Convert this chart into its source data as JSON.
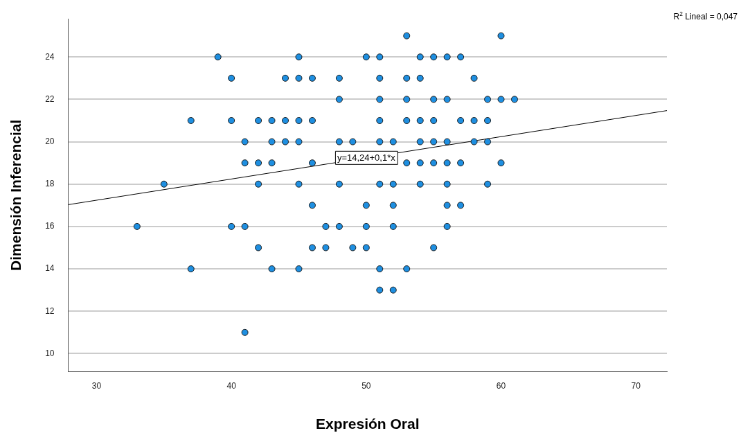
{
  "chart_data": {
    "type": "scatter",
    "xlabel": "Expresión Oral",
    "ylabel": "Dimensión Inferencial",
    "xlim": [
      27.9,
      72.3
    ],
    "ylim": [
      9.15,
      25.8
    ],
    "xticks": [
      30,
      40,
      50,
      60,
      70
    ],
    "yticks": [
      10,
      12,
      14,
      16,
      18,
      20,
      22,
      24
    ],
    "grid": "y",
    "legend": false,
    "series": [
      {
        "marker": "circle",
        "color": "#1e8fe1",
        "x": [
          53,
          60,
          39,
          45,
          50,
          51,
          54,
          55,
          56,
          57,
          40,
          44,
          45,
          46,
          48,
          51,
          53,
          54,
          58,
          48,
          51,
          53,
          55,
          56,
          59,
          60,
          61,
          37,
          40,
          42,
          43,
          44,
          45,
          46,
          51,
          53,
          54,
          55,
          57,
          58,
          59,
          41,
          43,
          44,
          45,
          48,
          49,
          51,
          52,
          54,
          55,
          56,
          58,
          59,
          41,
          42,
          43,
          46,
          53,
          54,
          55,
          56,
          57,
          60,
          35,
          42,
          45,
          48,
          51,
          52,
          54,
          56,
          59,
          46,
          50,
          52,
          56,
          57,
          33,
          40,
          41,
          47,
          48,
          50,
          52,
          56,
          42,
          46,
          47,
          49,
          50,
          55,
          37,
          43,
          45,
          51,
          53,
          51,
          52,
          41
        ],
        "values": [
          25,
          25,
          24,
          24,
          24,
          24,
          24,
          24,
          24,
          24,
          23,
          23,
          23,
          23,
          23,
          23,
          23,
          23,
          23,
          22,
          22,
          22,
          22,
          22,
          22,
          22,
          22,
          21,
          21,
          21,
          21,
          21,
          21,
          21,
          21,
          21,
          21,
          21,
          21,
          21,
          21,
          20,
          20,
          20,
          20,
          20,
          20,
          20,
          20,
          20,
          20,
          20,
          20,
          20,
          19,
          19,
          19,
          19,
          19,
          19,
          19,
          19,
          19,
          19,
          18,
          18,
          18,
          18,
          18,
          18,
          18,
          18,
          18,
          17,
          17,
          17,
          17,
          17,
          16,
          16,
          16,
          16,
          16,
          16,
          16,
          16,
          15,
          15,
          15,
          15,
          15,
          15,
          14,
          14,
          14,
          14,
          14,
          13,
          13,
          11
        ]
      },
      {
        "type": "line",
        "marker": "none",
        "color": "#000000",
        "x": [
          27.9,
          72.3
        ],
        "values": [
          17.03,
          21.47
        ]
      }
    ],
    "annotations": [
      {
        "text": "y=14,24+0,1*x",
        "x": 50,
        "y": 19.24
      },
      "R$^{2}$ Lineal = 0,047"
    ]
  }
}
